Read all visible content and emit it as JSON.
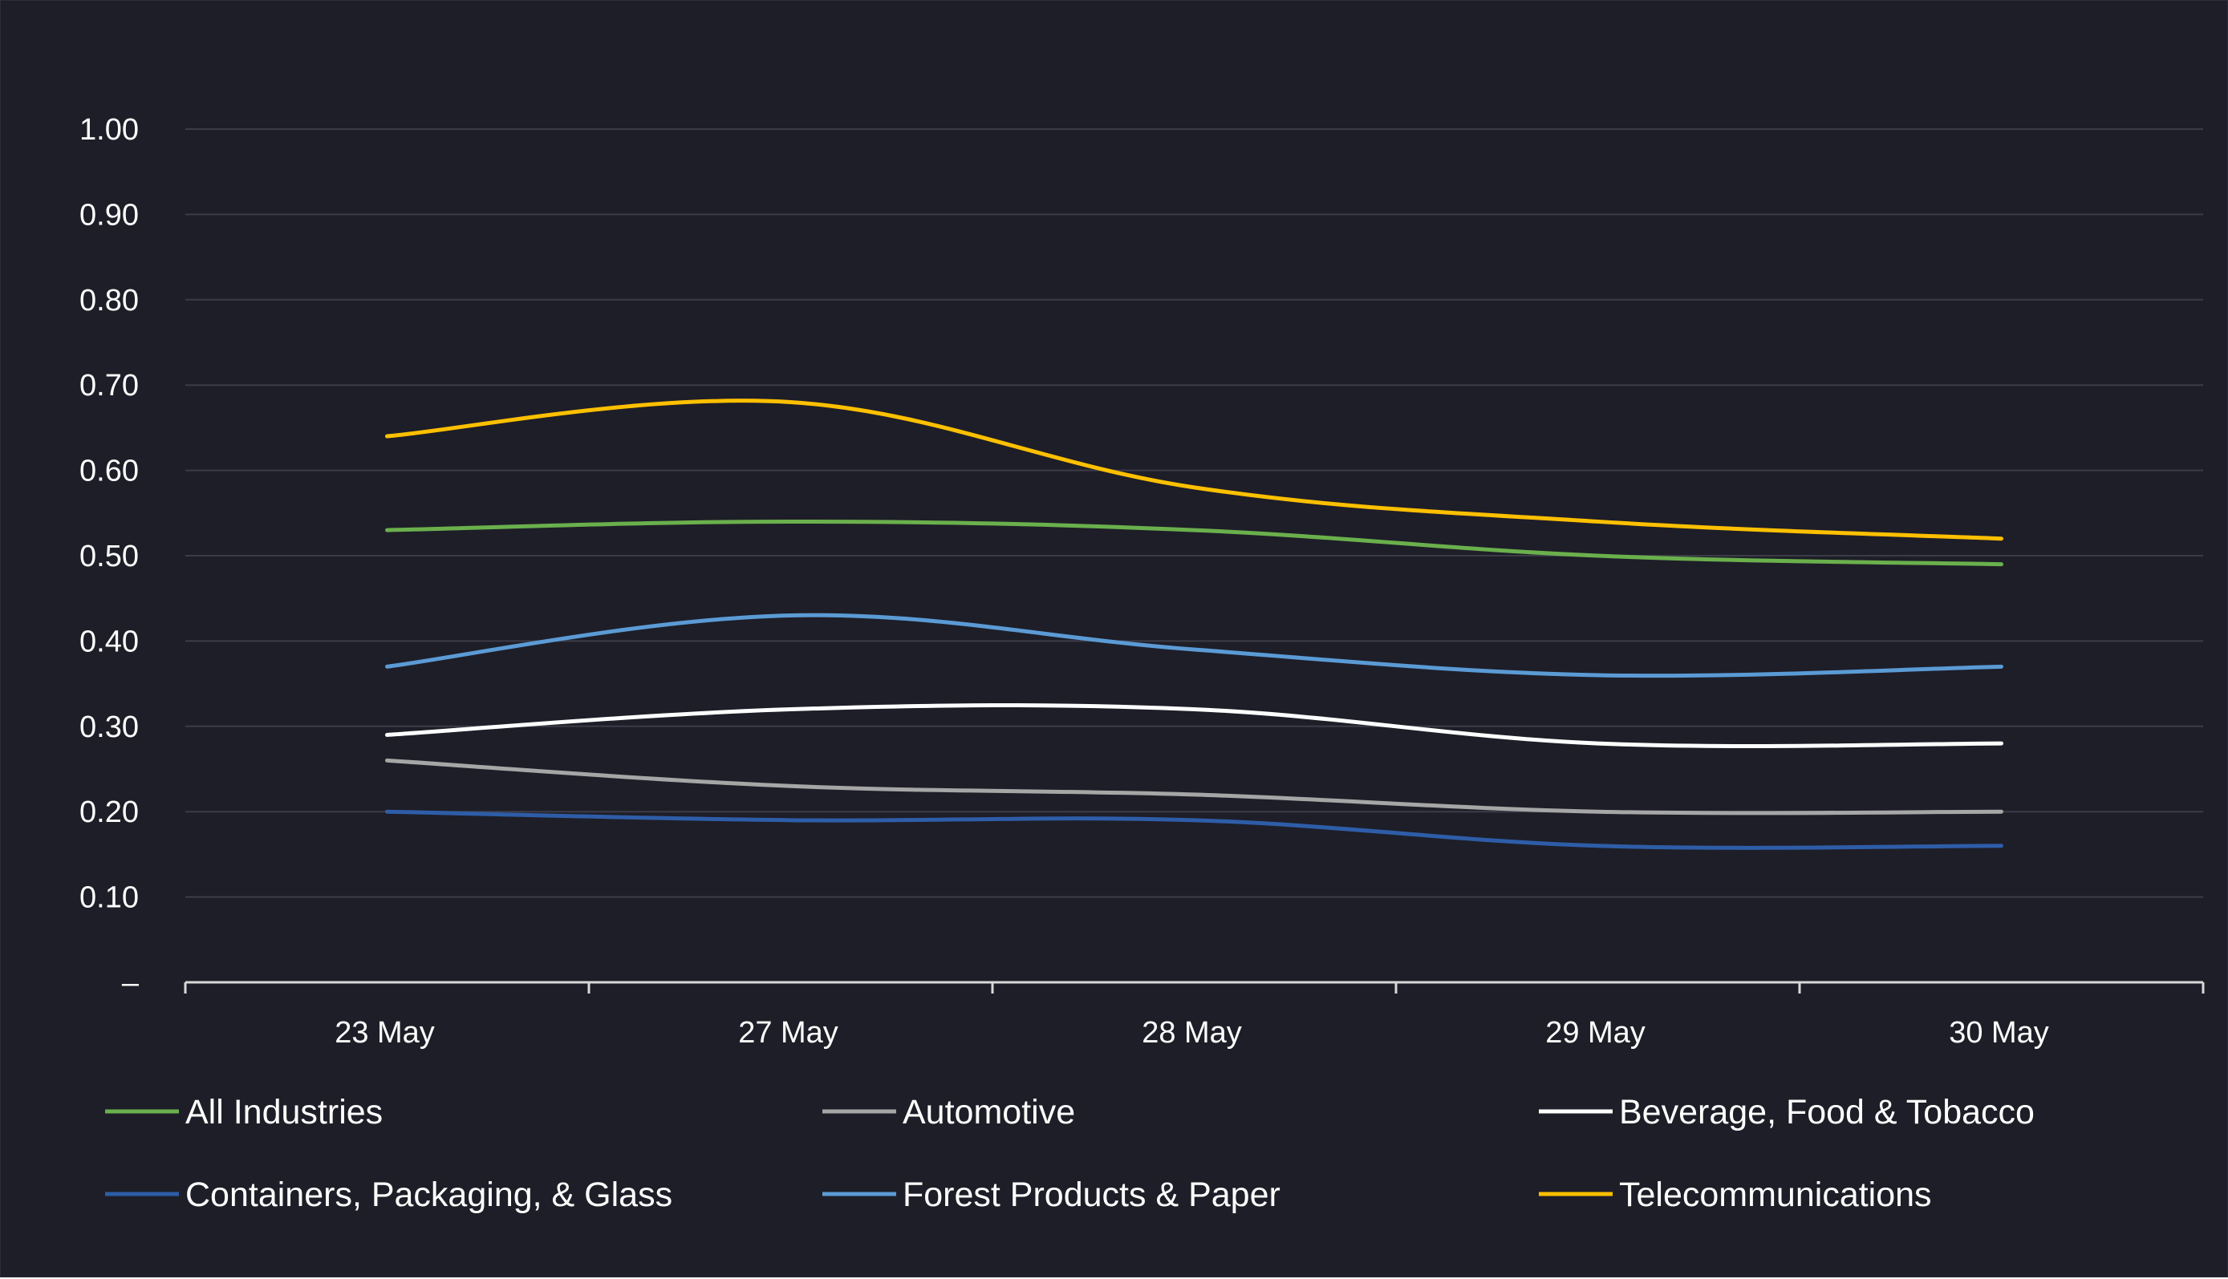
{
  "chart_data": {
    "type": "line",
    "categories": [
      "23 May",
      "27 May",
      "28 May",
      "29 May",
      "30 May"
    ],
    "y_tick_labels": [
      "–",
      "0.10",
      "0.20",
      "0.30",
      "0.40",
      "0.50",
      "0.60",
      "0.70",
      "0.80",
      "0.90",
      "1.00"
    ],
    "ylim": [
      0,
      1.0
    ],
    "grid": true,
    "legend_position": "bottom",
    "series": [
      {
        "name": "All Industries",
        "color": "#6ab04c",
        "values": [
          0.53,
          0.54,
          0.53,
          0.5,
          0.49
        ]
      },
      {
        "name": "Automotive",
        "color": "#a6a6a6",
        "values": [
          0.26,
          0.23,
          0.22,
          0.2,
          0.2
        ]
      },
      {
        "name": "Beverage, Food & Tobacco",
        "color": "#ffffff",
        "values": [
          0.29,
          0.32,
          0.32,
          0.28,
          0.28
        ]
      },
      {
        "name": "Containers, Packaging, & Glass",
        "color": "#2e5da8",
        "values": [
          0.2,
          0.19,
          0.19,
          0.16,
          0.16
        ]
      },
      {
        "name": "Forest Products & Paper",
        "color": "#5b9bd5",
        "values": [
          0.37,
          0.43,
          0.39,
          0.36,
          0.37
        ]
      },
      {
        "name": "Telecommunications",
        "color": "#ffc000",
        "values": [
          0.64,
          0.68,
          0.58,
          0.54,
          0.52
        ]
      }
    ]
  }
}
